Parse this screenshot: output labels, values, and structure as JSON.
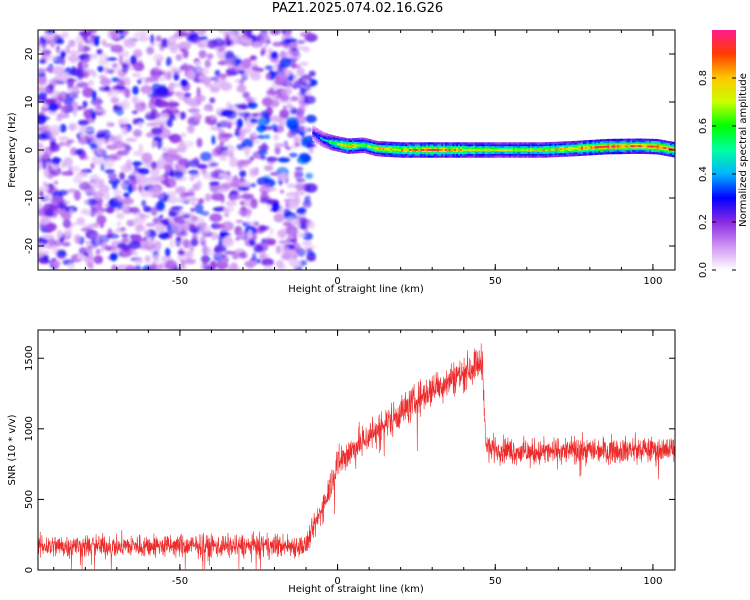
{
  "title": "PAZ1.2025.074.02.16.G26",
  "chart_data": [
    {
      "type": "heatmap",
      "xlabel": "Height of straight line (km)",
      "ylabel": "Frequency (Hz)",
      "xlim": [
        -95,
        107
      ],
      "ylim": [
        -25,
        25
      ],
      "xticks": [
        -50,
        0,
        50,
        100
      ],
      "xtick_labels": [
        "-50",
        "0",
        "50",
        "100"
      ],
      "yticks": [
        -20,
        -10,
        0,
        10,
        20
      ],
      "ytick_labels": [
        "-20",
        "-10",
        "0",
        "10",
        "20"
      ],
      "noise_region_x": [
        -95,
        -8
      ],
      "ridge": [
        {
          "x": -8,
          "y": 3.5,
          "amp": 0.25
        },
        {
          "x": -5,
          "y": 2.2,
          "amp": 0.35
        },
        {
          "x": -2,
          "y": 1.5,
          "amp": 0.55
        },
        {
          "x": 3,
          "y": 0.8,
          "amp": 0.8
        },
        {
          "x": 8,
          "y": 1.0,
          "amp": 0.6
        },
        {
          "x": 12,
          "y": 0.3,
          "amp": 0.7
        },
        {
          "x": 20,
          "y": 0.0,
          "amp": 0.75
        },
        {
          "x": 30,
          "y": 0.0,
          "amp": 0.85
        },
        {
          "x": 45,
          "y": 0.0,
          "amp": 0.7
        },
        {
          "x": 55,
          "y": 0.0,
          "amp": 0.65
        },
        {
          "x": 65,
          "y": 0.0,
          "amp": 0.7
        },
        {
          "x": 75,
          "y": 0.3,
          "amp": 0.75
        },
        {
          "x": 85,
          "y": 0.7,
          "amp": 0.9
        },
        {
          "x": 95,
          "y": 0.8,
          "amp": 0.8
        },
        {
          "x": 101,
          "y": 0.7,
          "amp": 0.9
        },
        {
          "x": 107,
          "y": 0.0,
          "amp": 0.8
        }
      ],
      "colorbar": {
        "label": "Normalized spectral amplitude",
        "ticks": [
          0.0,
          0.2,
          0.4,
          0.6,
          0.8
        ],
        "tick_labels": [
          "0.0",
          "0.2",
          "0.4",
          "0.6",
          "0.8"
        ],
        "range": [
          0,
          1
        ],
        "colors": [
          "#ffffff",
          "#ce93f3",
          "#8a2be2",
          "#0000ff",
          "#00b4ff",
          "#00ffa0",
          "#00ff00",
          "#c8ff00",
          "#ffc800",
          "#ff3c00",
          "#ff1a8c"
        ]
      }
    },
    {
      "type": "line",
      "xlabel": "Height of straight line (km)",
      "ylabel": "SNR (10 * v/v)",
      "xlim": [
        -95,
        107
      ],
      "ylim": [
        0,
        1700
      ],
      "xticks": [
        -50,
        0,
        50,
        100
      ],
      "xtick_labels": [
        "-50",
        "0",
        "50",
        "100"
      ],
      "yticks": [
        0,
        500,
        1000,
        1500
      ],
      "ytick_labels": [
        "0",
        "500",
        "1000",
        "1500"
      ],
      "color": "#ee2a2a",
      "series_trend": [
        {
          "x": -95,
          "y": 170
        },
        {
          "x": -10,
          "y": 170
        },
        {
          "x": -5,
          "y": 430
        },
        {
          "x": 0,
          "y": 760
        },
        {
          "x": 10,
          "y": 950
        },
        {
          "x": 20,
          "y": 1120
        },
        {
          "x": 30,
          "y": 1280
        },
        {
          "x": 40,
          "y": 1400
        },
        {
          "x": 46,
          "y": 1480
        },
        {
          "x": 47,
          "y": 870
        },
        {
          "x": 60,
          "y": 830
        },
        {
          "x": 80,
          "y": 850
        },
        {
          "x": 107,
          "y": 850
        }
      ],
      "noise_amplitude": [
        {
          "x": -95,
          "a": 75
        },
        {
          "x": -10,
          "a": 75
        },
        {
          "x": 0,
          "a": 110
        },
        {
          "x": 46,
          "a": 110
        },
        {
          "x": 47,
          "a": 85
        },
        {
          "x": 107,
          "a": 85
        }
      ]
    }
  ]
}
